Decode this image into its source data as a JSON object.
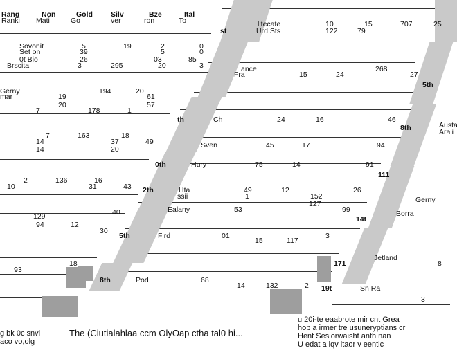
{
  "left_table": {
    "headers": [
      "Rang",
      "Non",
      "Gold",
      "Silv",
      "Bze",
      "Ital"
    ],
    "headers2": [
      "Ranki",
      "Mati",
      "Go",
      "ver",
      "ron",
      "To"
    ],
    "rows": [
      {
        "n": "Sovonit",
        "g": "5",
        "s": "19",
        "b": "2",
        "t": "0"
      },
      {
        "n": "Set on",
        "g": "39",
        "s": "",
        "b": "5",
        "t": "0"
      },
      {
        "n": "0t Bio",
        "g": "26",
        "s": "",
        "b": "03",
        "t": "85"
      },
      {
        "n": "Brscita",
        "g": "3",
        "s": "295",
        "b": "20",
        "t": "3"
      },
      {
        "n": "Gerny",
        "g": "",
        "s": "194",
        "b": "20",
        "t": ""
      },
      {
        "n": "mar",
        "g": "19",
        "s": "",
        "b": "",
        "t": "61"
      },
      {
        "n": "",
        "g": "20",
        "s": "",
        "b": "",
        "t": "57"
      },
      {
        "n": "7",
        "g": "",
        "s": "178",
        "b": "1",
        "t": ""
      },
      {
        "n": "7",
        "g": "163",
        "s": "",
        "b": "18",
        "t": ""
      },
      {
        "n": "14",
        "g": "",
        "s": "",
        "b": "37",
        "t": "49"
      },
      {
        "n": "14",
        "g": "",
        "s": "",
        "b": "20",
        "t": ""
      },
      {
        "n": "2",
        "g": "136",
        "s": "",
        "b": "16",
        "t": ""
      },
      {
        "n": "10",
        "g": "",
        "s": "",
        "b": "31",
        "t": "43"
      },
      {
        "n": "129",
        "g": "",
        "s": "",
        "b": "",
        "t": "40"
      },
      {
        "n": "94",
        "g": "",
        "s": "12",
        "b": "",
        "t": ""
      },
      {
        "n": "",
        "g": "",
        "s": "",
        "b": "",
        "t": "30"
      },
      {
        "n": "93",
        "g": "18",
        "s": "",
        "b": "",
        "t": ""
      }
    ],
    "footer_left": [
      "g bk 0c snvl",
      "aco vo,olg"
    ]
  },
  "mid_table": {
    "rows": [
      {
        "rank": "st",
        "name": "Urd Sts",
        "g": "122",
        "s": "79",
        "b": "",
        "t": ""
      },
      {
        "rank": "",
        "name": "Fra",
        "g": "15",
        "s": "24",
        "b": "",
        "t": "27"
      },
      {
        "rank": "",
        "name": "ance",
        "g": "",
        "s": "",
        "b": "268",
        "t": ""
      },
      {
        "rank": "th",
        "name": "Ch",
        "g": "24",
        "s": "16",
        "b": "",
        "t": "46"
      },
      {
        "rank": "",
        "name": "Sven",
        "g": "45",
        "s": "17",
        "b": "",
        "t": "94"
      },
      {
        "rank": "0th",
        "name": "Hury",
        "g": "75",
        "s": "14",
        "b": "",
        "t": "91"
      },
      {
        "rank": "2th",
        "name": "Hta",
        "g": "49",
        "s": "12",
        "b": "",
        "t": "26"
      },
      {
        "rank": "",
        "name": "ssii",
        "g": "1",
        "s": "",
        "b": "152",
        "t": ""
      },
      {
        "rank": "",
        "name": "Ealany",
        "g": "53",
        "s": "",
        "b": "127",
        "t": "99"
      },
      {
        "rank": "5th",
        "name": "Fird",
        "g": "01",
        "s": "15",
        "b": "117",
        "t": "3"
      },
      {
        "rank": "8th",
        "name": "Pod",
        "g": "68",
        "s": "14",
        "b": "132",
        "t": "2"
      }
    ]
  },
  "right_table": {
    "rows": [
      {
        "rank": "",
        "name": "litecate",
        "g": "10",
        "s": "15",
        "b": "707",
        "t": "25"
      },
      {
        "rank": "5th",
        "name": "",
        "g": "",
        "s": "",
        "b": "",
        "t": ""
      },
      {
        "rank": "8th",
        "name": "Austa",
        "g": "",
        "s": "",
        "b": "",
        "t": ""
      },
      {
        "rank": "",
        "name": "Arali",
        "g": "",
        "s": "",
        "b": "",
        "t": ""
      },
      {
        "rank": "111",
        "name": "Gerny",
        "g": "",
        "s": "",
        "b": "",
        "t": ""
      },
      {
        "rank": "14t",
        "name": "Borra",
        "g": "",
        "s": "",
        "b": "",
        "t": ""
      },
      {
        "rank": "171",
        "name": "Jetland",
        "g": "",
        "s": "",
        "b": "",
        "t": "8"
      },
      {
        "rank": "19t",
        "name": "Sn Ra",
        "g": "",
        "s": "",
        "b": "",
        "t": "3"
      }
    ],
    "footer_right": [
      "u 20i-te eaabrote mir cnt Grea",
      "hop a irmer tre usuneryptians cr",
      "Hent Sesiorwaisht anth nan",
      "U edat a iqv itaor v eentic"
    ]
  },
  "caption": "The (Ciutialahlaa ccm OlyOap ctha tal0 hi..."
}
